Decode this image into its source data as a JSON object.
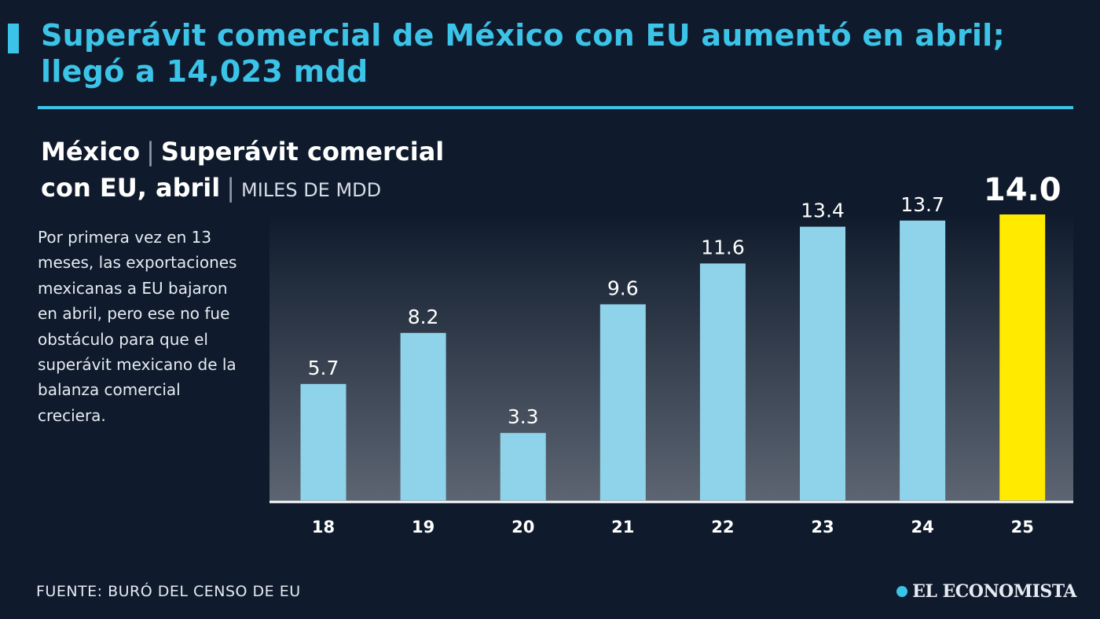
{
  "headline": {
    "line1": "Superávit comercial de México con  EU aumentó en abril;",
    "line2": "llegó a 14,023 mdd"
  },
  "chart_header": {
    "part1": "México",
    "part2": "Superávit comercial",
    "part3": "con EU, abril",
    "units": "MILES DE MDD"
  },
  "note_text": "Por primera vez en 13 meses, las exportaciones mexicanas a EU bajaron en abril, pero ese no fue obstáculo para que el superávit mexicano de la balanza comercial creciera.",
  "source": "FUENTE: BURÓ DEL CENSO DE EU",
  "logo_text": "EL ECONOMISTA",
  "colors": {
    "background": "#0f1b2c",
    "accent": "#3cc3e8",
    "bar": "#8fd3ea",
    "highlight_bar": "#ffea00"
  },
  "chart_data": {
    "type": "bar",
    "categories": [
      "18",
      "19",
      "20",
      "21",
      "22",
      "23",
      "24",
      "25"
    ],
    "values": [
      5.7,
      8.2,
      3.3,
      9.6,
      11.6,
      13.4,
      13.7,
      14.0
    ],
    "value_labels": [
      "5.7",
      "8.2",
      "3.3",
      "9.6",
      "11.6",
      "13.4",
      "13.7",
      "14.0"
    ],
    "highlight_index": 7,
    "ylim": [
      0,
      14.0
    ],
    "grid": false,
    "legend": "none"
  }
}
